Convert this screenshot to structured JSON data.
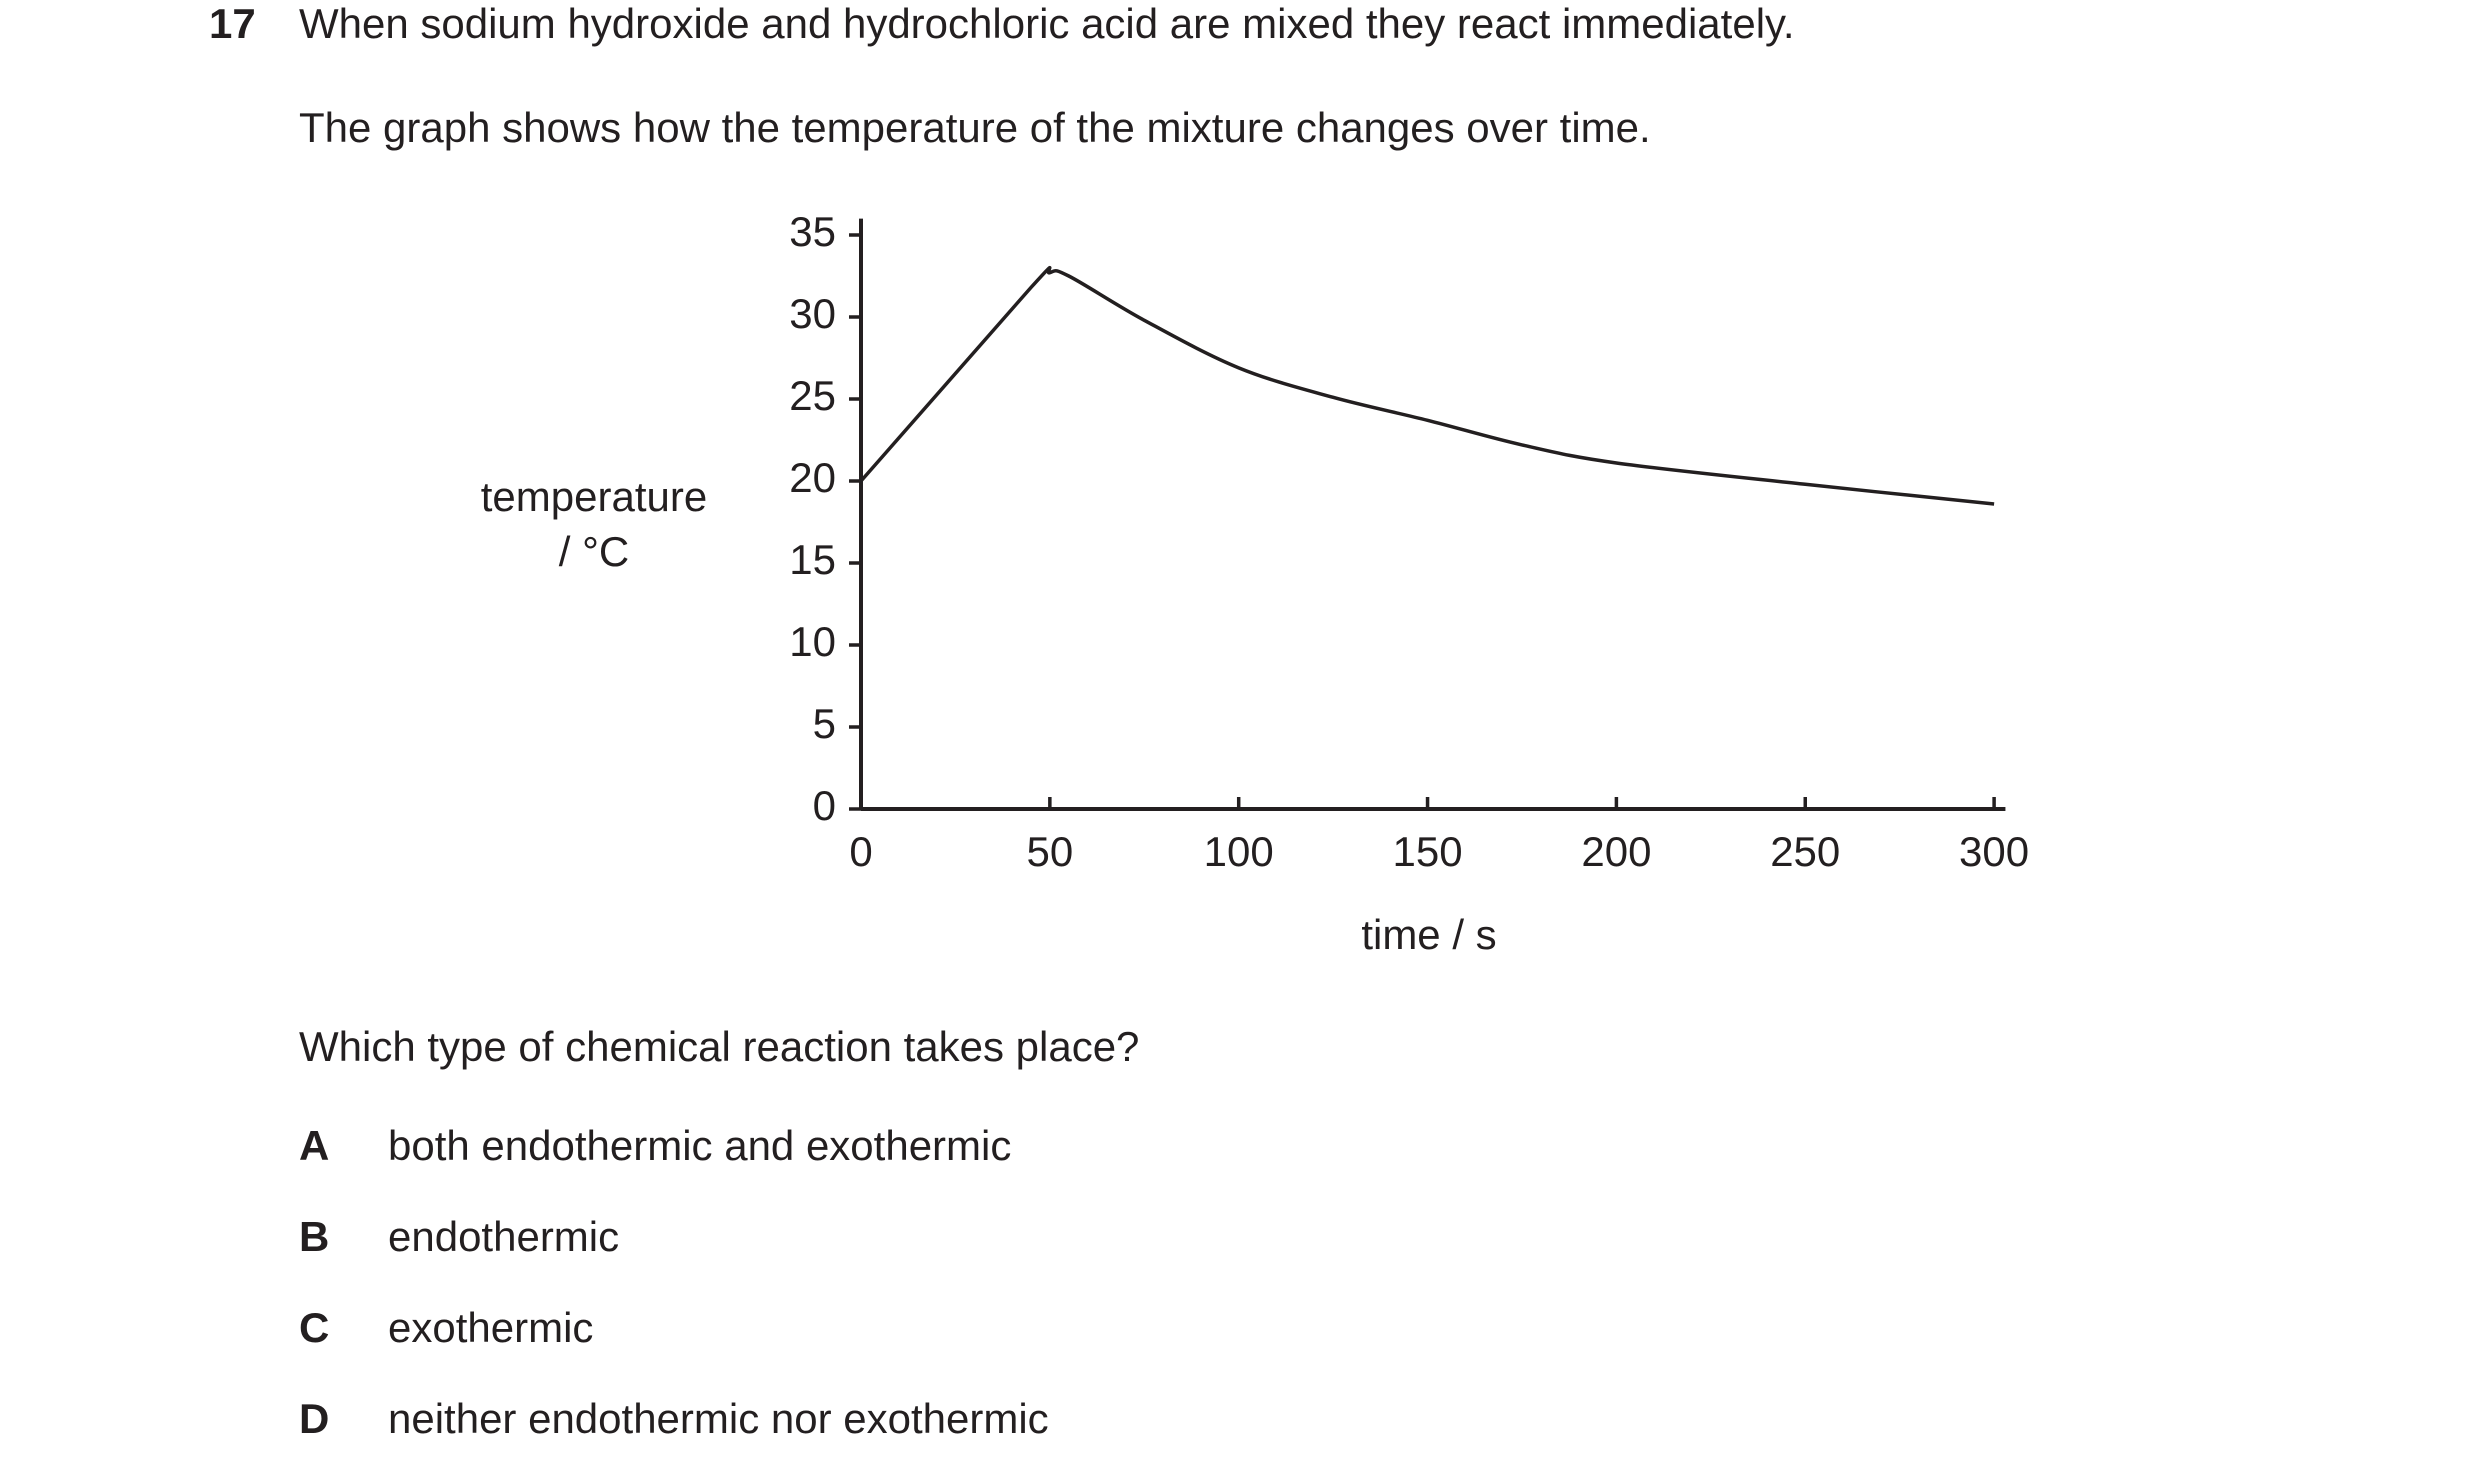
{
  "question": {
    "number": "17",
    "text": "When sodium hydroxide and hydrochloric acid are mixed they react immediately.",
    "intro": "The graph shows how the temperature of the mixture changes over time."
  },
  "chart_data": {
    "type": "line",
    "x": [
      0,
      45,
      50,
      55,
      75,
      100,
      125,
      150,
      175,
      200,
      250,
      300
    ],
    "values": [
      20,
      31.8,
      32.7,
      32.5,
      29.8,
      26.9,
      25.1,
      23.7,
      22.2,
      21.1,
      19.8,
      18.6
    ],
    "color": "#231f20",
    "x_label": "time / s",
    "y_label": [
      "temperature",
      "/ °C"
    ],
    "xlim": [
      0,
      303
    ],
    "xticks": [
      0,
      50,
      100,
      150,
      200,
      250,
      300
    ],
    "ylim": [
      0,
      36
    ],
    "yticks": [
      0,
      5,
      10,
      15,
      20,
      25,
      30,
      35
    ],
    "grid": false
  },
  "prompt": "Which type of chemical reaction takes place?",
  "options": [
    {
      "letter": "A",
      "text": "both endothermic and exothermic"
    },
    {
      "letter": "B",
      "text": "endothermic"
    },
    {
      "letter": "C",
      "text": "exothermic"
    },
    {
      "letter": "D",
      "text": "neither endothermic nor exothermic"
    }
  ]
}
